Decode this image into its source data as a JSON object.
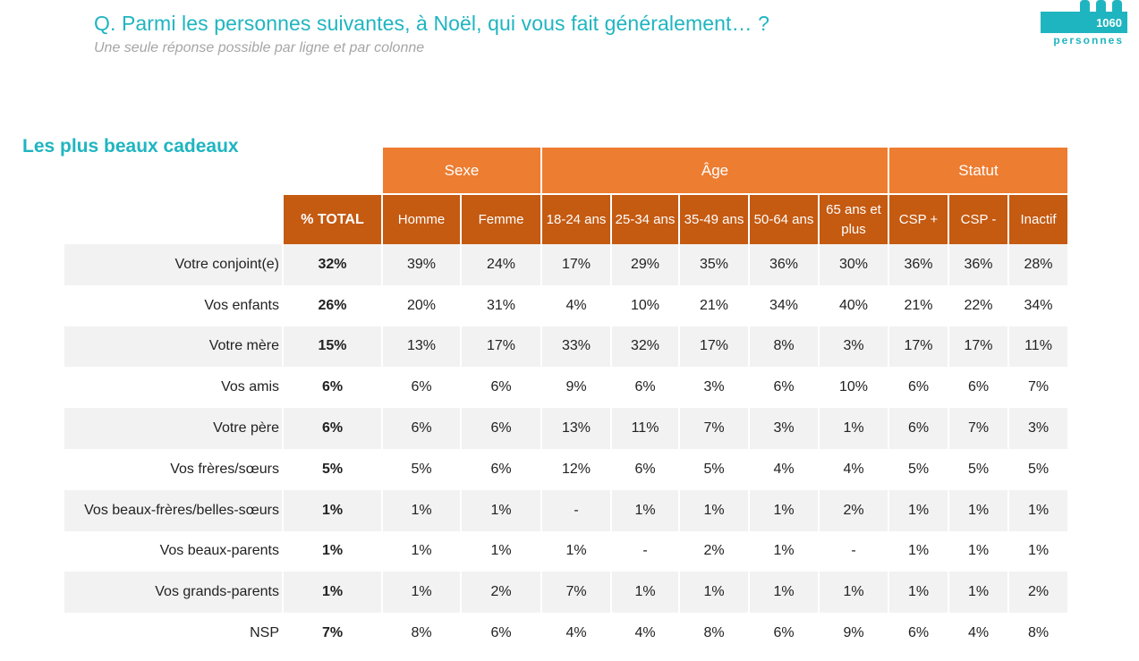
{
  "header": {
    "question": "Q. Parmi les personnes suivantes, à Noël, qui vous fait généralement… ?",
    "subtitle": "Une seule réponse possible par ligne et par colonne",
    "badge_count": "1060",
    "badge_label": "personnes"
  },
  "section_title": "Les plus beaux cadeaux",
  "colors": {
    "accent": "#1fb5c0",
    "group_header": "#ed7d31",
    "sub_header": "#c55a11",
    "row_shade": "#f2f2f2"
  },
  "table": {
    "groups": [
      {
        "label": "Sexe",
        "span": 2
      },
      {
        "label": "Âge",
        "span": 5
      },
      {
        "label": "Statut",
        "span": 3
      }
    ],
    "total_header": "% TOTAL",
    "columns": [
      "Homme",
      "Femme",
      "18-24 ans",
      "25-34 ans",
      "35-49 ans",
      "50-64 ans",
      "65 ans et plus",
      "CSP +",
      "CSP -",
      "Inactif"
    ],
    "rows": [
      {
        "label": "Votre conjoint(e)",
        "total": "32%",
        "values": [
          "39%",
          "24%",
          "17%",
          "29%",
          "35%",
          "36%",
          "30%",
          "36%",
          "36%",
          "28%"
        ]
      },
      {
        "label": "Vos enfants",
        "total": "26%",
        "values": [
          "20%",
          "31%",
          "4%",
          "10%",
          "21%",
          "34%",
          "40%",
          "21%",
          "22%",
          "34%"
        ]
      },
      {
        "label": "Votre mère",
        "total": "15%",
        "values": [
          "13%",
          "17%",
          "33%",
          "32%",
          "17%",
          "8%",
          "3%",
          "17%",
          "17%",
          "11%"
        ]
      },
      {
        "label": "Vos amis",
        "total": "6%",
        "values": [
          "6%",
          "6%",
          "9%",
          "6%",
          "3%",
          "6%",
          "10%",
          "6%",
          "6%",
          "7%"
        ]
      },
      {
        "label": "Votre père",
        "total": "6%",
        "values": [
          "6%",
          "6%",
          "13%",
          "11%",
          "7%",
          "3%",
          "1%",
          "6%",
          "7%",
          "3%"
        ]
      },
      {
        "label": "Vos frères/sœurs",
        "total": "5%",
        "values": [
          "5%",
          "6%",
          "12%",
          "6%",
          "5%",
          "4%",
          "4%",
          "5%",
          "5%",
          "5%"
        ]
      },
      {
        "label": "Vos beaux-frères/belles-sœurs",
        "total": "1%",
        "values": [
          "1%",
          "1%",
          "-",
          "1%",
          "1%",
          "1%",
          "2%",
          "1%",
          "1%",
          "1%"
        ]
      },
      {
        "label": "Vos beaux-parents",
        "total": "1%",
        "values": [
          "1%",
          "1%",
          "1%",
          "-",
          "2%",
          "1%",
          "-",
          "1%",
          "1%",
          "1%"
        ]
      },
      {
        "label": "Vos grands-parents",
        "total": "1%",
        "values": [
          "1%",
          "2%",
          "7%",
          "1%",
          "1%",
          "1%",
          "1%",
          "1%",
          "1%",
          "2%"
        ]
      },
      {
        "label": "NSP",
        "total": "7%",
        "values": [
          "8%",
          "6%",
          "4%",
          "4%",
          "8%",
          "6%",
          "9%",
          "6%",
          "4%",
          "8%"
        ]
      }
    ]
  }
}
